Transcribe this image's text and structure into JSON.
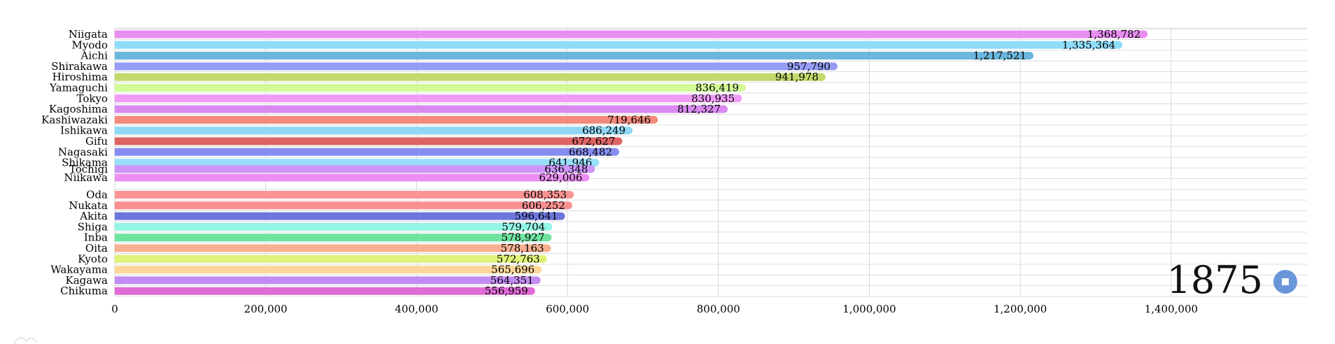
{
  "colors": {
    "background": "#ffffff",
    "grid": "#d6d6d6",
    "play_button": "#6a95d8"
  },
  "controls": {
    "year": "1875",
    "play_button_icon": "stop-icon"
  },
  "chart_data": {
    "type": "bar",
    "orientation": "horizontal",
    "title": "",
    "xlabel": "",
    "ylabel": "",
    "xlim": [
      0,
      1580000
    ],
    "x_ticks": [
      0,
      200000,
      400000,
      600000,
      800000,
      1000000,
      1200000,
      1400000
    ],
    "x_tick_labels": [
      "0",
      "200,000",
      "400,000",
      "600,000",
      "800,000",
      "1,000,000",
      "1,200,000",
      "1,400,000"
    ],
    "grid": true,
    "categories": [
      "Niigata",
      "Myodo",
      "Aichi",
      "Shirakawa",
      "Hiroshima",
      "Yamaguchi",
      "Tokyo",
      "Kagoshima",
      "Kashiwazaki",
      "Ishikawa",
      "Gifu",
      "Nagasaki",
      "Shikama",
      "Tochigi",
      "Niikawa",
      "Oda",
      "Nukata",
      "Akita",
      "Shiga",
      "Inba",
      "Oita",
      "Kyoto",
      "Wakayama",
      "Kagawa",
      "Chikuma"
    ],
    "values": [
      1368782,
      1335364,
      1217521,
      957790,
      941978,
      836419,
      830935,
      812327,
      719646,
      686249,
      672627,
      668482,
      641946,
      636348,
      629006,
      608353,
      606252,
      596641,
      579704,
      578927,
      578163,
      572763,
      565696,
      564351,
      556959
    ],
    "value_labels": [
      "1,368,782",
      "1,335,364",
      "1,217,521",
      "957,790",
      "941,978",
      "836,419",
      "830,935",
      "812,327",
      "719,646",
      "686,249",
      "672,627",
      "668,482",
      "641,946",
      "636,348",
      "629,006",
      "608,353",
      "606,252",
      "596,641",
      "579,704",
      "578,927",
      "578,163",
      "572,763",
      "565,696",
      "564,351",
      "556,959"
    ],
    "bar_colors": [
      "#e88ef0",
      "#8fdcf9",
      "#6ab6dc",
      "#949cf6",
      "#c2d96b",
      "#d2fa96",
      "#f09cf6",
      "#d98af0",
      "#f38a7c",
      "#8fd8f6",
      "#de6363",
      "#858df0",
      "#98e0fa",
      "#cd95f7",
      "#ea8ff1",
      "#fa9493",
      "#f89090",
      "#6c76dd",
      "#93f5e5",
      "#6ee3a0",
      "#f7b090",
      "#dff279",
      "#fcd798",
      "#c38cf3",
      "#e06ad6"
    ]
  }
}
